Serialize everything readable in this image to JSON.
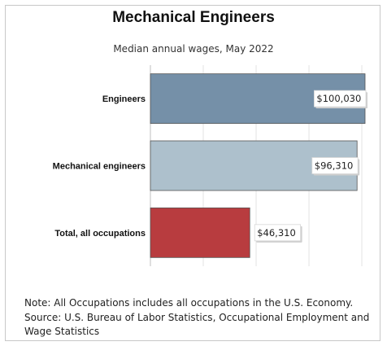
{
  "chart_data": {
    "type": "bar",
    "orientation": "horizontal",
    "title": "Mechanical Engineers",
    "subtitle": "Median annual wages, May 2022",
    "categories": [
      "Engineers",
      "Mechanical engineers",
      "Total, all occupations"
    ],
    "values": [
      100030,
      96310,
      46310
    ],
    "value_labels": [
      "$100,030",
      "$96,310",
      "$46,310"
    ],
    "bar_colors": [
      "#7590a8",
      "#adc0cc",
      "#b83c3f"
    ],
    "xlim": [
      0,
      100030
    ],
    "grid": true,
    "legend": "none"
  },
  "notes": {
    "note": "Note: All Occupations includes all occupations in the U.S. Economy.",
    "source": "Source: U.S. Bureau of Labor Statistics, Occupational Employment and Wage Statistics"
  }
}
